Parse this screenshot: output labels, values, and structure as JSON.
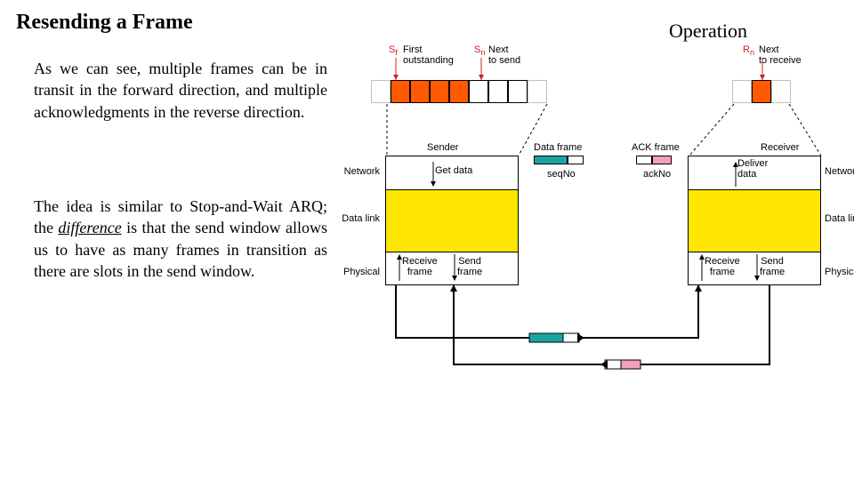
{
  "title": "Resending a Frame",
  "operation_label": "Operation",
  "para1": "As we can see, multiple frames can be in transit in the forward direction, and multiple acknowledgments in the reverse direction.",
  "para2_pre": "The idea is similar to Stop-and-Wait ARQ; the ",
  "para2_em": "difference",
  "para2_post": " is that the send window allows us to have as many frames in transition as there are slots in the send window.",
  "sender_window": {
    "sf_label": "S",
    "sf_sub": "f",
    "sf_text": "First\noutstanding",
    "sn_label": "S",
    "sn_sub": "n",
    "sn_text": "Next\nto send",
    "cells": [
      {
        "color": "#ffffff",
        "border": "#c0c0c0"
      },
      {
        "color": "#ff5a00",
        "border": "#000"
      },
      {
        "color": "#ff5a00",
        "border": "#000"
      },
      {
        "color": "#ff5a00",
        "border": "#000"
      },
      {
        "color": "#ff5a00",
        "border": "#000"
      },
      {
        "color": "#ffffff",
        "border": "#000"
      },
      {
        "color": "#ffffff",
        "border": "#000"
      },
      {
        "color": "#ffffff",
        "border": "#000"
      },
      {
        "color": "#ffffff",
        "border": "#c0c0c0"
      }
    ]
  },
  "receiver_window": {
    "rn_label": "R",
    "rn_sub": "n",
    "rn_text": "Next\nto receive",
    "cells": [
      {
        "color": "#ffffff",
        "border": "#c0c0c0"
      },
      {
        "color": "#ff5a00",
        "border": "#000"
      },
      {
        "color": "#ffffff",
        "border": "#c0c0c0"
      }
    ]
  },
  "layers": {
    "left_labels": [
      "Network",
      "Data link",
      "Physical"
    ],
    "right_labels": [
      "Network",
      "Data link",
      "Physical"
    ],
    "sender_title": "Sender",
    "receiver_title": "Receiver",
    "get_data": "Get data",
    "deliver_data": "Deliver\ndata",
    "seqNo": "seqNo",
    "ackNo": "ackNo",
    "receive_frame_l": "Receive\nframe",
    "send_frame_l": "Send\nframe",
    "receive_frame_r": "Receive\nframe",
    "send_frame_r": "Send\nframe",
    "data_frame": "Data frame",
    "ack_frame": "ACK frame"
  },
  "colors": {
    "orange": "#ff5a00",
    "yellow": "#ffe600",
    "teal": "#1aa5a5",
    "pink": "#f2a0c0",
    "gray": "#b0b0b0"
  }
}
